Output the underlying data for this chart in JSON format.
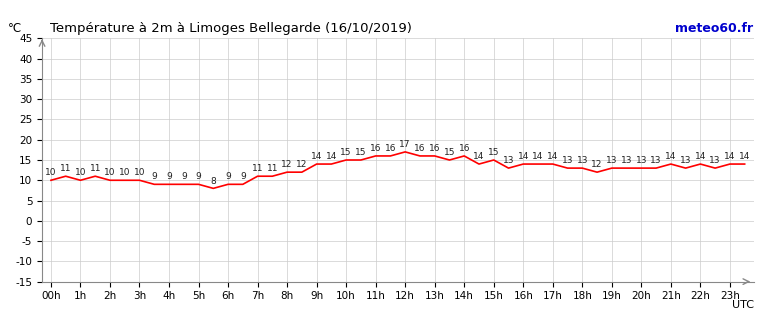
{
  "title": "Température à 2m à Limoges Bellegarde (16/10/2019)",
  "ylabel": "°C",
  "xlabel_right": "UTC",
  "watermark": "meteo60.fr",
  "hour_labels": [
    "00h",
    "1h",
    "2h",
    "3h",
    "4h",
    "5h",
    "6h",
    "7h",
    "8h",
    "9h",
    "10h",
    "11h",
    "12h",
    "13h",
    "14h",
    "15h",
    "16h",
    "17h",
    "18h",
    "19h",
    "20h",
    "21h",
    "22h",
    "23h"
  ],
  "x_half": [
    0.0,
    0.5,
    1.0,
    1.5,
    2.0,
    2.5,
    3.0,
    3.5,
    4.0,
    4.5,
    5.0,
    5.5,
    6.0,
    6.5,
    7.0,
    7.5,
    8.0,
    8.5,
    9.0,
    9.5,
    10.0,
    10.5,
    11.0,
    11.5,
    12.0,
    12.5,
    13.0,
    13.5,
    14.0,
    14.5,
    15.0,
    15.5,
    16.0,
    16.5,
    17.0,
    17.5,
    18.0,
    18.5,
    19.0,
    19.5,
    20.0,
    20.5,
    21.0,
    21.5,
    22.0,
    22.5,
    23.0,
    23.5
  ],
  "temps_half": [
    10,
    11,
    10,
    11,
    10,
    10,
    10,
    9,
    9,
    9,
    9,
    8,
    9,
    9,
    11,
    11,
    12,
    12,
    14,
    14,
    15,
    15,
    16,
    16,
    17,
    16,
    16,
    15,
    16,
    14,
    15,
    13,
    14,
    14,
    14,
    13,
    13,
    12,
    13,
    13,
    13,
    13,
    14,
    13,
    14,
    13,
    14,
    14
  ],
  "line_color": "#ff0000",
  "grid_color": "#cccccc",
  "bg_color": "#ffffff",
  "title_color": "#000000",
  "watermark_color": "#0000cd",
  "ylim": [
    -15,
    45
  ],
  "yticks": [
    -15,
    -10,
    -5,
    0,
    5,
    10,
    15,
    20,
    25,
    30,
    35,
    40,
    45
  ],
  "label_fontsize": 7.5,
  "title_fontsize": 9.5
}
